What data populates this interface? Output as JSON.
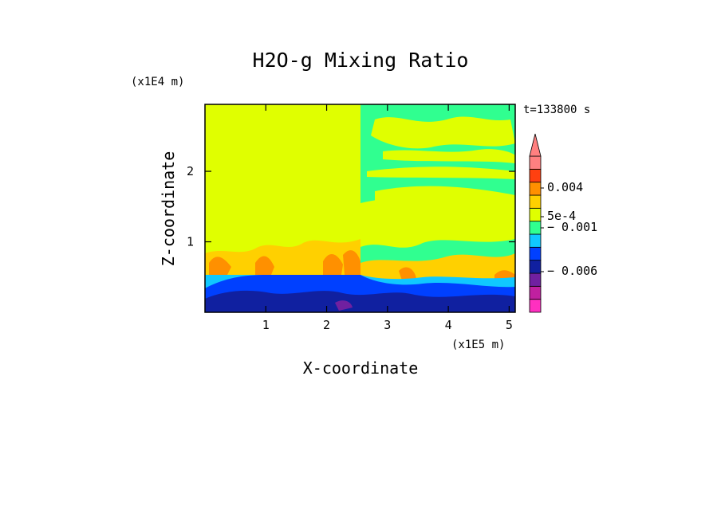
{
  "chart_data": {
    "type": "heatmap",
    "title": "H2O-g Mixing Ratio",
    "xlabel": "X-coordinate",
    "ylabel": "Z-coordinate",
    "x_unit": "(x1E5 m)",
    "y_unit": "(x1E4 m)",
    "time_label": "t=133800 s",
    "xlim": [
      0,
      5.1
    ],
    "ylim": [
      0,
      2.95
    ],
    "x_ticks": [
      1,
      2,
      3,
      4,
      5
    ],
    "y_ticks": [
      1,
      2
    ],
    "x_tick_labels": [
      "1",
      "2",
      "3",
      "4",
      "5"
    ],
    "y_tick_labels": [
      "1",
      "2"
    ],
    "colorbar": {
      "colors": [
        "#ff30c0",
        "#c020a0",
        "#7020a0",
        "#1020a0",
        "#0040ff",
        "#10c8ff",
        "#30ff90",
        "#e0ff00",
        "#ffd000",
        "#ff9000",
        "#ff4010",
        "#ff8080"
      ],
      "labels": [
        {
          "text": "0.004",
          "value": 0.004
        },
        {
          "text": "5e-4",
          "value": 0.0005
        },
        {
          "text": "− 0.001",
          "value": -0.001
        },
        {
          "text": "− 0.006",
          "value": -0.006
        }
      ],
      "extend_max": true
    },
    "regions": [
      {
        "description_level": "background",
        "value": 0.0
      }
    ]
  }
}
